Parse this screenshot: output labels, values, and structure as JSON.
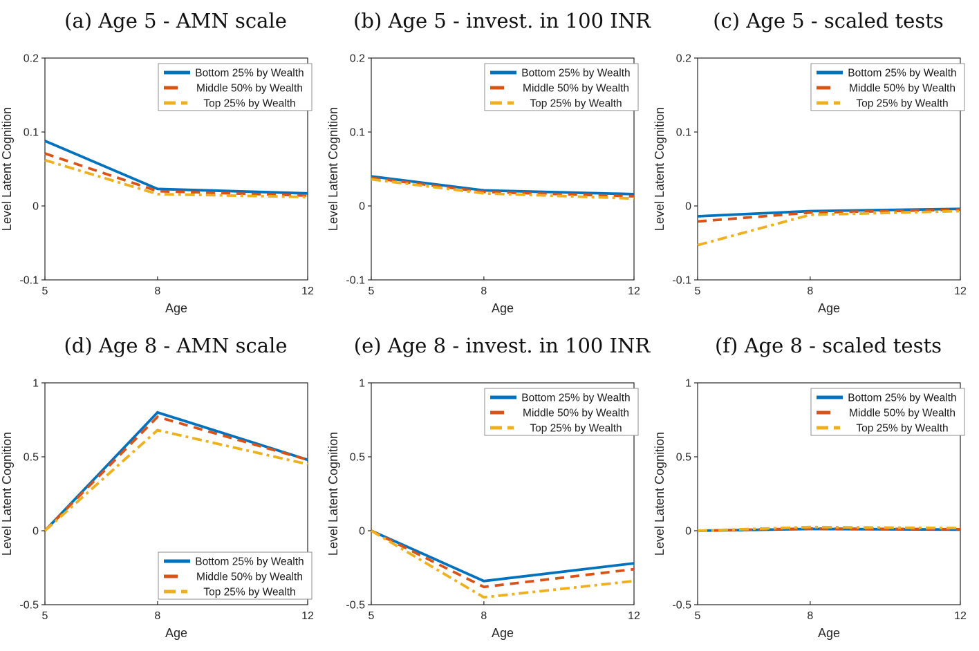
{
  "figure": {
    "ylabel": "Level Latent Cognition",
    "xlabel": "Age",
    "axis_color": "#262626",
    "legend_border_color": "#8c8c8c",
    "series_colors": {
      "bottom": "#0072BD",
      "middle": "#D95319",
      "top": "#EDB120"
    }
  },
  "chart_data": [
    {
      "panel": "a",
      "type": "line",
      "title": "(a) Age 5 - AMN scale",
      "xlabel": "Age",
      "ylabel": "Level Latent Cognition",
      "x": [
        5,
        8,
        12
      ],
      "xlim": [
        5,
        12
      ],
      "xticks": [
        5,
        8,
        12
      ],
      "ylim": [
        -0.1,
        0.2
      ],
      "yticks": [
        -0.1,
        0,
        0.1,
        0.2
      ],
      "grid": false,
      "legend_position": "top-right",
      "series": [
        {
          "name": "Bottom 25% by Wealth",
          "color": "#0072BD",
          "style": "solid",
          "values": [
            0.088,
            0.023,
            0.017
          ]
        },
        {
          "name": "Middle 50% by Wealth",
          "color": "#D95319",
          "style": "dashed",
          "values": [
            0.071,
            0.02,
            0.014
          ]
        },
        {
          "name": "Top 25% by Wealth",
          "color": "#EDB120",
          "style": "dashdot",
          "values": [
            0.062,
            0.016,
            0.012
          ]
        }
      ]
    },
    {
      "panel": "b",
      "type": "line",
      "title": "(b) Age 5 - invest. in 100 INR",
      "xlabel": "Age",
      "ylabel": "Level Latent Cognition",
      "x": [
        5,
        8,
        12
      ],
      "xlim": [
        5,
        12
      ],
      "xticks": [
        5,
        8,
        12
      ],
      "ylim": [
        -0.1,
        0.2
      ],
      "yticks": [
        -0.1,
        0,
        0.1,
        0.2
      ],
      "grid": false,
      "legend_position": "top-right",
      "series": [
        {
          "name": "Bottom 25% by Wealth",
          "color": "#0072BD",
          "style": "solid",
          "values": [
            0.04,
            0.021,
            0.016
          ]
        },
        {
          "name": "Middle 50% by Wealth",
          "color": "#D95319",
          "style": "dashed",
          "values": [
            0.038,
            0.019,
            0.013
          ]
        },
        {
          "name": "Top 25% by Wealth",
          "color": "#EDB120",
          "style": "dashdot",
          "values": [
            0.036,
            0.017,
            0.01
          ]
        }
      ]
    },
    {
      "panel": "c",
      "type": "line",
      "title": "(c) Age 5 - scaled tests",
      "xlabel": "Age",
      "ylabel": "Level Latent Cognition",
      "x": [
        5,
        8,
        12
      ],
      "xlim": [
        5,
        12
      ],
      "xticks": [
        5,
        8,
        12
      ],
      "ylim": [
        -0.1,
        0.2
      ],
      "yticks": [
        -0.1,
        0,
        0.1,
        0.2
      ],
      "grid": false,
      "legend_position": "top-right",
      "series": [
        {
          "name": "Bottom 25% by Wealth",
          "color": "#0072BD",
          "style": "solid",
          "values": [
            -0.014,
            -0.007,
            -0.004
          ]
        },
        {
          "name": "Middle 50% by Wealth",
          "color": "#D95319",
          "style": "dashed",
          "values": [
            -0.021,
            -0.009,
            -0.005
          ]
        },
        {
          "name": "Top 25% by Wealth",
          "color": "#EDB120",
          "style": "dashdot",
          "values": [
            -0.053,
            -0.012,
            -0.007
          ]
        }
      ]
    },
    {
      "panel": "d",
      "type": "line",
      "title": "(d) Age 8 - AMN scale",
      "xlabel": "Age",
      "ylabel": "Level Latent Cognition",
      "x": [
        5,
        8,
        12
      ],
      "xlim": [
        5,
        12
      ],
      "xticks": [
        5,
        8,
        12
      ],
      "ylim": [
        -0.5,
        1
      ],
      "yticks": [
        -0.5,
        0,
        0.5,
        1
      ],
      "grid": false,
      "legend_position": "bottom-right",
      "series": [
        {
          "name": "Bottom 25% by Wealth",
          "color": "#0072BD",
          "style": "solid",
          "values": [
            0.0,
            0.8,
            0.48
          ]
        },
        {
          "name": "Middle 50% by Wealth",
          "color": "#D95319",
          "style": "dashed",
          "values": [
            0.0,
            0.77,
            0.48
          ]
        },
        {
          "name": "Top 25% by Wealth",
          "color": "#EDB120",
          "style": "dashdot",
          "values": [
            0.0,
            0.68,
            0.45
          ]
        }
      ]
    },
    {
      "panel": "e",
      "type": "line",
      "title": "(e) Age 8 - invest. in 100 INR",
      "xlabel": "Age",
      "ylabel": "Level Latent Cognition",
      "x": [
        5,
        8,
        12
      ],
      "xlim": [
        5,
        12
      ],
      "xticks": [
        5,
        8,
        12
      ],
      "ylim": [
        -0.5,
        1
      ],
      "yticks": [
        -0.5,
        0,
        0.5,
        1
      ],
      "grid": false,
      "legend_position": "top-right",
      "series": [
        {
          "name": "Bottom 25% by Wealth",
          "color": "#0072BD",
          "style": "solid",
          "values": [
            0.0,
            -0.34,
            -0.22
          ]
        },
        {
          "name": "Middle 50% by Wealth",
          "color": "#D95319",
          "style": "dashed",
          "values": [
            0.0,
            -0.38,
            -0.26
          ]
        },
        {
          "name": "Top 25% by Wealth",
          "color": "#EDB120",
          "style": "dashdot",
          "values": [
            0.0,
            -0.45,
            -0.34
          ]
        }
      ]
    },
    {
      "panel": "f",
      "type": "line",
      "title": "(f) Age 8 - scaled tests",
      "xlabel": "Age",
      "ylabel": "Level Latent Cognition",
      "x": [
        5,
        8,
        12
      ],
      "xlim": [
        5,
        12
      ],
      "xticks": [
        5,
        8,
        12
      ],
      "ylim": [
        -0.5,
        1
      ],
      "yticks": [
        -0.5,
        0,
        0.5,
        1
      ],
      "grid": false,
      "legend_position": "top-right",
      "series": [
        {
          "name": "Bottom 25% by Wealth",
          "color": "#0072BD",
          "style": "solid",
          "values": [
            0.0,
            0.012,
            0.008
          ]
        },
        {
          "name": "Middle 50% by Wealth",
          "color": "#D95319",
          "style": "dashed",
          "values": [
            0.0,
            0.015,
            0.01
          ]
        },
        {
          "name": "Top 25% by Wealth",
          "color": "#EDB120",
          "style": "dashdot",
          "values": [
            0.0,
            0.025,
            0.018
          ]
        }
      ]
    }
  ]
}
